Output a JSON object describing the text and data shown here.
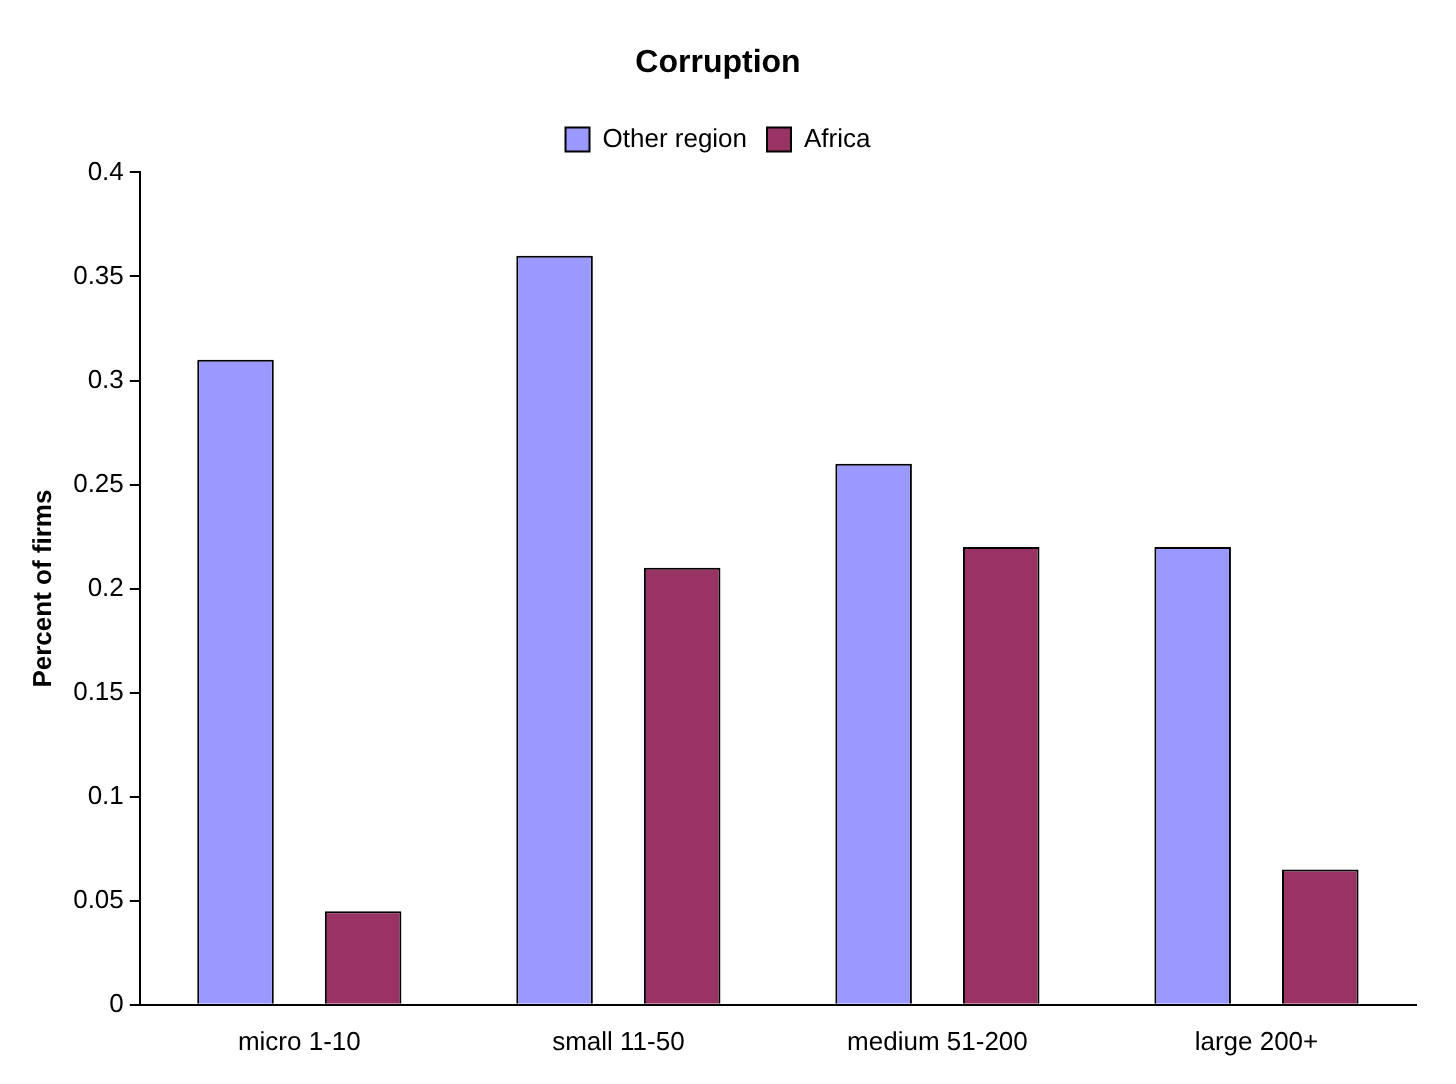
{
  "chart_data": {
    "type": "bar",
    "title": "Corruption",
    "ylabel": "Percent of firms",
    "categories": [
      "micro 1-10",
      "small 11-50",
      "medium 51-200",
      "large 200+"
    ],
    "series": [
      {
        "name": "Other region",
        "color": "#9999ff",
        "values": [
          0.31,
          0.36,
          0.26,
          0.22
        ]
      },
      {
        "name": "Africa",
        "color": "#993366",
        "values": [
          0.045,
          0.21,
          0.22,
          0.065
        ]
      }
    ],
    "ylim": [
      0,
      0.4
    ],
    "yticks": [
      0,
      0.05,
      0.1,
      0.15,
      0.2,
      0.25,
      0.3,
      0.35,
      0.4
    ],
    "grid": false,
    "legend": "top"
  }
}
